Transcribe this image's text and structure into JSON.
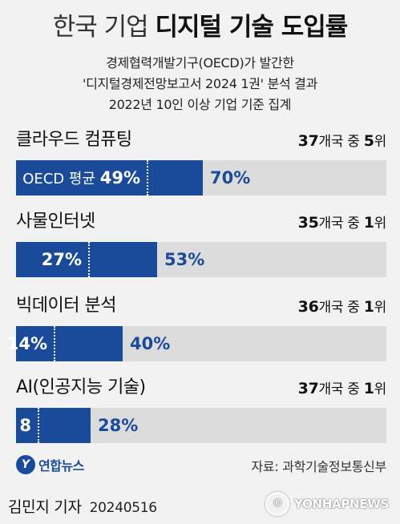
{
  "title": {
    "light": "한국 기업",
    "bold": "디지털 기술 도입률"
  },
  "subtitle": [
    "경제협력개발기구(OECD)가 발간한",
    "'디지털경제전망보고서 2024 1권' 분석 결과",
    "2022년 10인 이상 기업 기준 집계"
  ],
  "chart_data": {
    "type": "bar",
    "unit": "%",
    "scale_max": 100,
    "categories": [
      "클라우드 컴퓨팅",
      "사물인터넷",
      "빅데이터 분석",
      "AI(인공지능 기술)"
    ],
    "series": [
      {
        "name": "OECD 평균",
        "values": [
          49,
          27,
          14,
          8
        ]
      },
      {
        "values": [
          70,
          53,
          40,
          28
        ]
      }
    ],
    "oecd_label_prefix": "OECD 평균",
    "ranks": [
      {
        "total": "37",
        "rank": "5",
        "mid": "개국 중 ",
        "end": "위"
      },
      {
        "total": "35",
        "rank": "1",
        "mid": "개국 중 ",
        "end": "위"
      },
      {
        "total": "36",
        "rank": "1",
        "mid": "개국 중 ",
        "end": "위"
      },
      {
        "total": "37",
        "rank": "1",
        "mid": "개국 중 ",
        "end": "위"
      }
    ],
    "oecd_labels": [
      "49%",
      "27%",
      "14%",
      "8"
    ],
    "korea_labels": [
      "70%",
      "53%",
      "40%",
      "28%"
    ]
  },
  "footer": {
    "logo_text": "연합뉴스",
    "logo_mark": "Y",
    "source": "자료: 과학기술정보통신부",
    "reporter": "김민지 기자",
    "date": "20240516",
    "watermark": "YONHAPNEWS"
  },
  "colors": {
    "korea_bar": "#1a4b9b",
    "bar_background": "#dcdcdc",
    "background": "#f2f2f2"
  }
}
